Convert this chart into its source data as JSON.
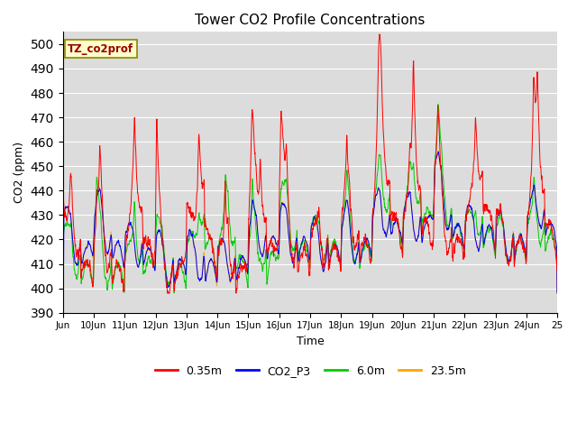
{
  "title": "Tower CO2 Profile Concentrations",
  "xlabel": "Time",
  "ylabel": "CO2 (ppm)",
  "annotation_text": "TZ_co2prof",
  "annotation_bg": "#FFFFCC",
  "annotation_border": "#CCCC00",
  "annotation_text_color": "#990000",
  "ylim": [
    390,
    505
  ],
  "yticks": [
    390,
    400,
    410,
    420,
    430,
    440,
    450,
    460,
    470,
    480,
    490,
    500
  ],
  "series_colors": [
    "#FF0000",
    "#0000FF",
    "#00CC00",
    "#FFA500"
  ],
  "series_labels": [
    "0.35m",
    "CO2_P3",
    "6.0m",
    "23.5m"
  ],
  "bg_color": "#DCDCDC",
  "n_days": 16,
  "base_co2": 415,
  "seed": 42,
  "start_day": 9,
  "end_day": 25
}
